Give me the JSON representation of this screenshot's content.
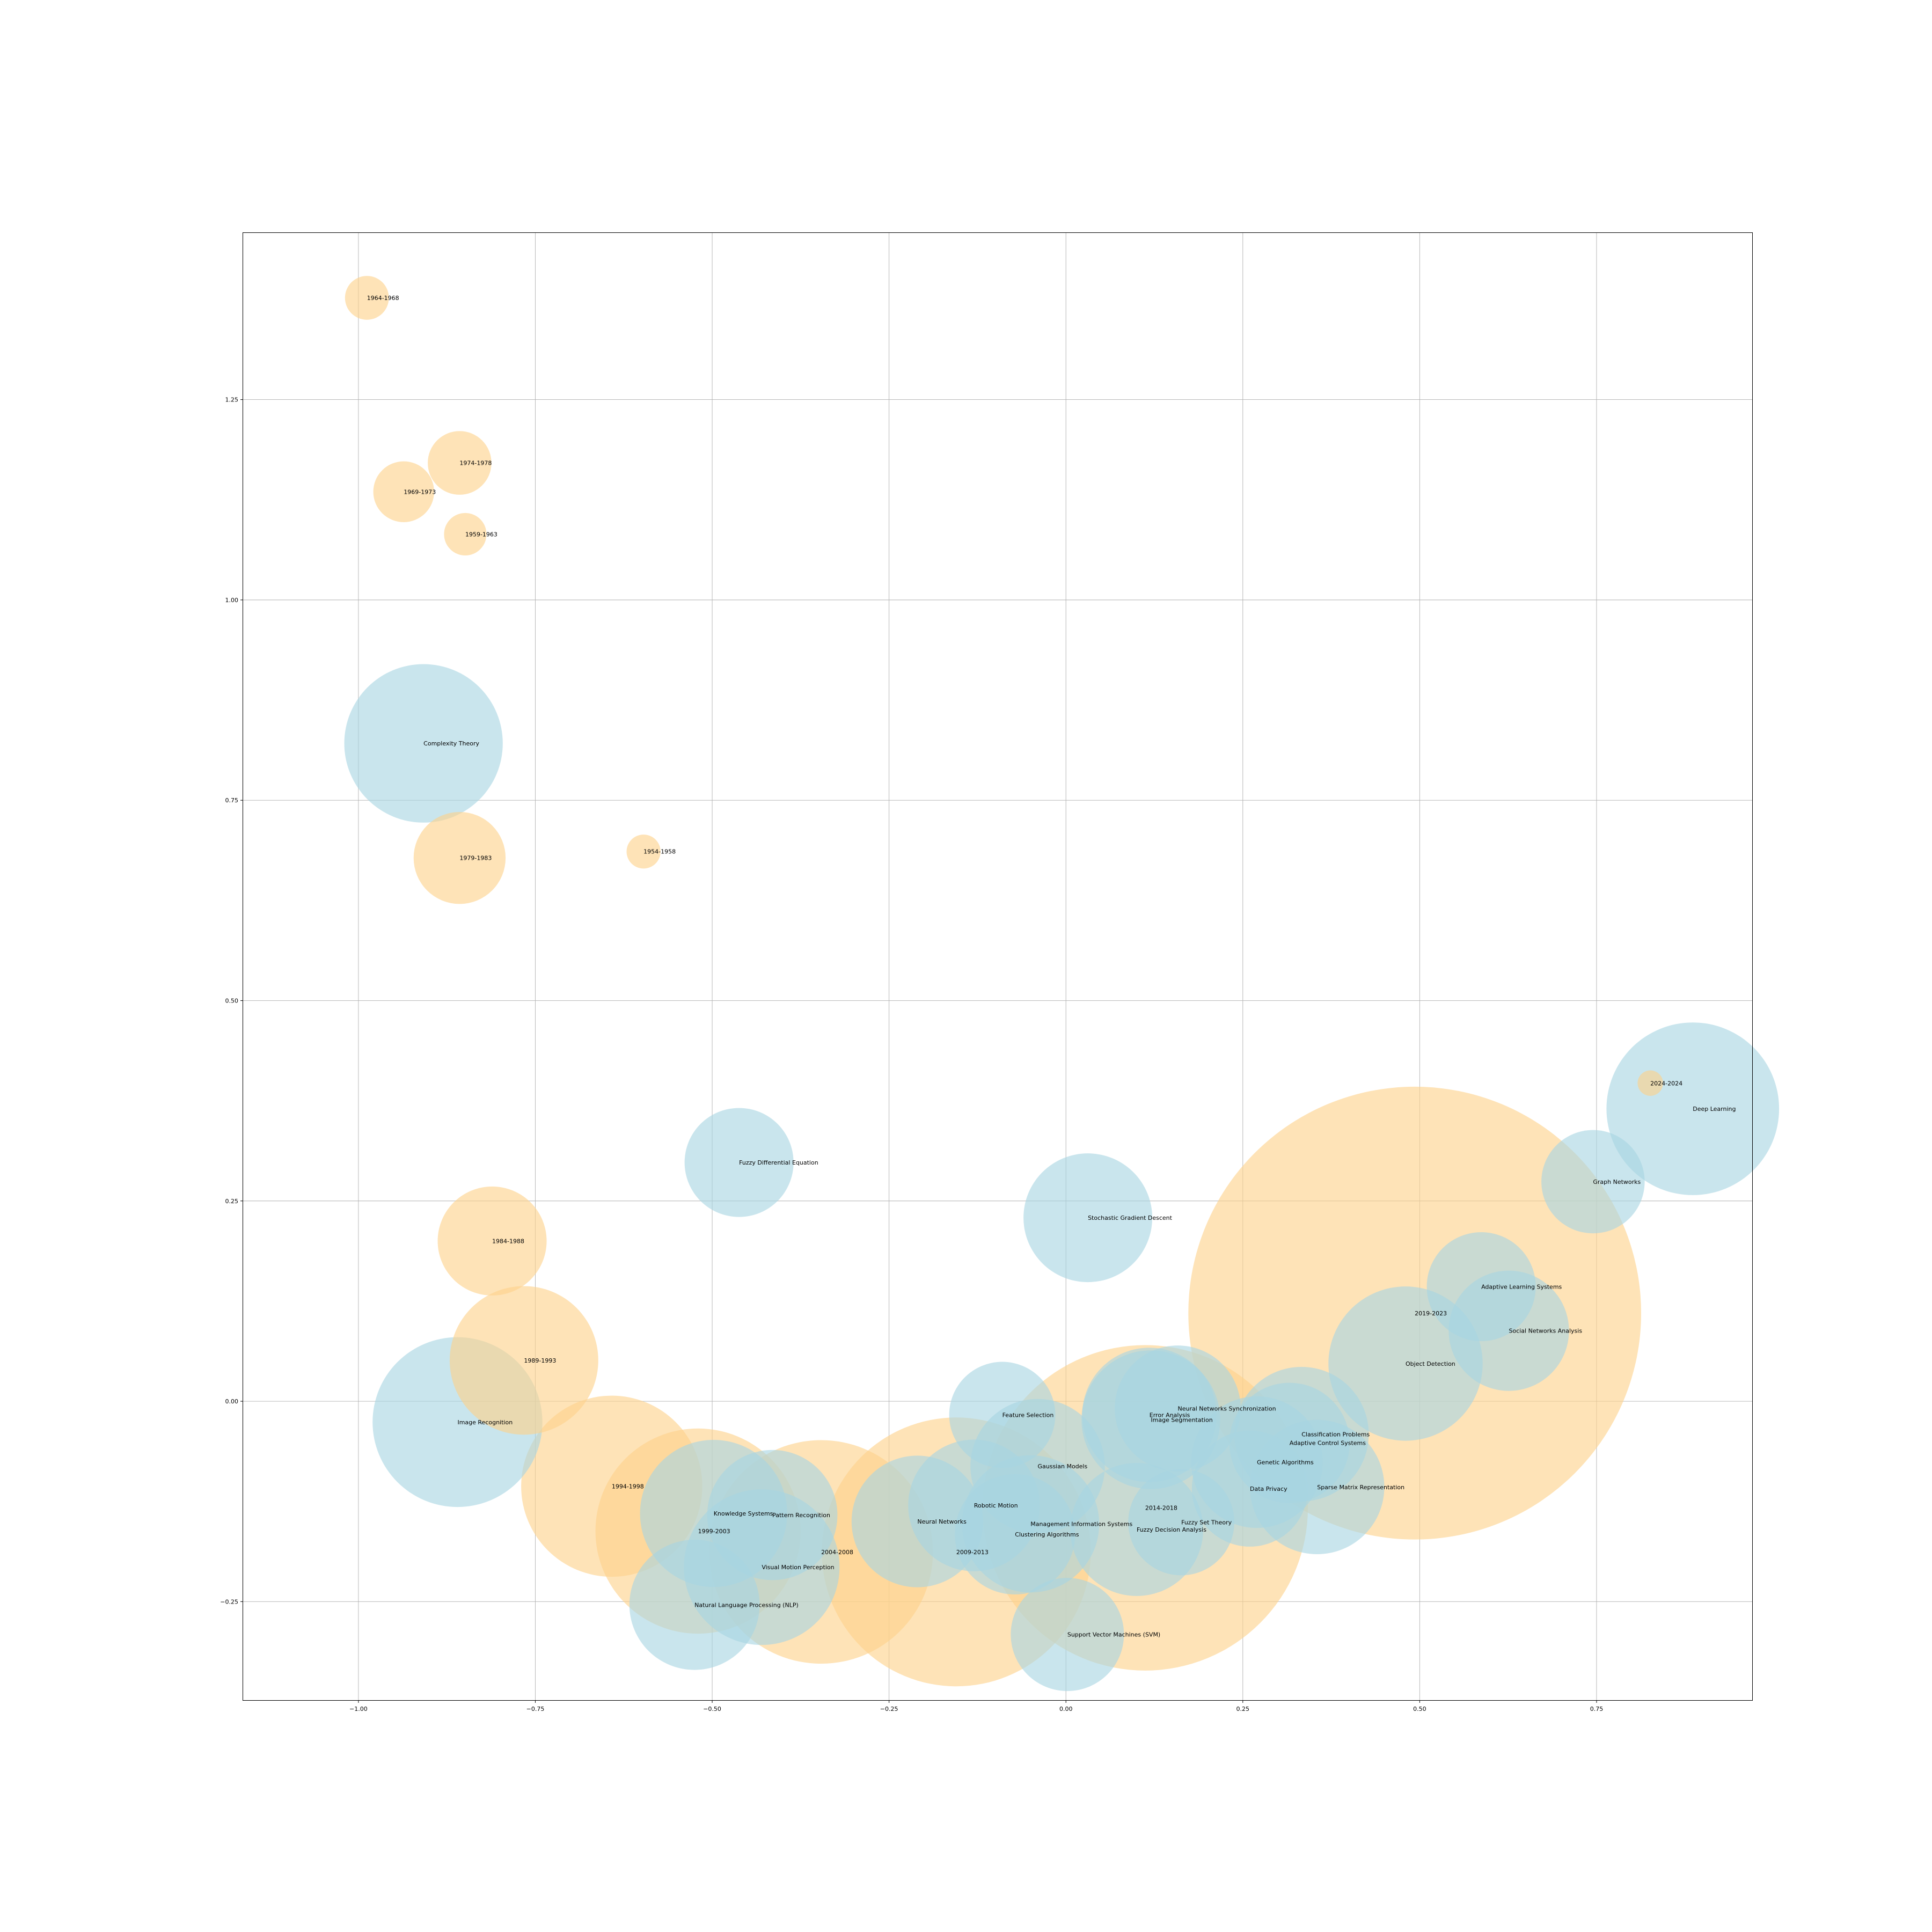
{
  "chart_data": {
    "type": "scatter",
    "subtype": "bubble",
    "title": "",
    "xlabel": "",
    "ylabel": "",
    "xlim": [
      -1.163,
      0.97
    ],
    "ylim": [
      -0.373,
      1.458
    ],
    "grid": true,
    "colors": {
      "period": "#FDD28A",
      "topic": "#A8D5E2"
    },
    "x_ticks": [
      {
        "value": -1.0,
        "label": "−1.00"
      },
      {
        "value": -0.75,
        "label": "−0.75"
      },
      {
        "value": -0.5,
        "label": "−0.50"
      },
      {
        "value": -0.25,
        "label": "−0.25"
      },
      {
        "value": 0.0,
        "label": "0.00"
      },
      {
        "value": 0.25,
        "label": "0.25"
      },
      {
        "value": 0.5,
        "label": "0.50"
      },
      {
        "value": 0.75,
        "label": "0.75"
      }
    ],
    "y_ticks": [
      {
        "value": -0.25,
        "label": "−0.25"
      },
      {
        "value": 0.0,
        "label": "0.00"
      },
      {
        "value": 0.25,
        "label": "0.25"
      },
      {
        "value": 0.5,
        "label": "0.50"
      },
      {
        "value": 0.75,
        "label": "0.75"
      },
      {
        "value": 1.0,
        "label": "1.00"
      },
      {
        "value": 1.25,
        "label": "1.25"
      }
    ],
    "points": [
      {
        "label": "1964-1968",
        "group": "period",
        "x": -0.988,
        "y": 1.377,
        "r": 0.031
      },
      {
        "label": "1974-1978",
        "group": "period",
        "x": -0.857,
        "y": 1.171,
        "r": 0.045
      },
      {
        "label": "1969-1973",
        "group": "period",
        "x": -0.936,
        "y": 1.135,
        "r": 0.043
      },
      {
        "label": "1959-1963",
        "group": "period",
        "x": -0.849,
        "y": 1.082,
        "r": 0.03
      },
      {
        "label": "Complexity Theory",
        "group": "topic",
        "x": -0.908,
        "y": 0.821,
        "r": 0.112
      },
      {
        "label": "1979-1983",
        "group": "period",
        "x": -0.857,
        "y": 0.678,
        "r": 0.065
      },
      {
        "label": "1954-1958",
        "group": "period",
        "x": -0.597,
        "y": 0.686,
        "r": 0.024
      },
      {
        "label": "2024-2024",
        "group": "period",
        "x": 0.826,
        "y": 0.397,
        "r": 0.018
      },
      {
        "label": "Deep Learning",
        "group": "topic",
        "x": 0.886,
        "y": 0.365,
        "r": 0.122
      },
      {
        "label": "Fuzzy Differential Equation",
        "group": "topic",
        "x": -0.462,
        "y": 0.298,
        "r": 0.077
      },
      {
        "label": "Graph Networks",
        "group": "topic",
        "x": 0.745,
        "y": 0.274,
        "r": 0.073
      },
      {
        "label": "Stochastic Gradient Descent",
        "group": "topic",
        "x": 0.031,
        "y": 0.229,
        "r": 0.091
      },
      {
        "label": "1984-1988",
        "group": "period",
        "x": -0.811,
        "y": 0.2,
        "r": 0.077
      },
      {
        "label": "2019-2023",
        "group": "period",
        "x": 0.493,
        "y": 0.11,
        "r": 0.32
      },
      {
        "label": "Adaptive Learning Systems",
        "group": "topic",
        "x": 0.587,
        "y": 0.143,
        "r": 0.077
      },
      {
        "label": "Social Networks Analysis",
        "group": "topic",
        "x": 0.626,
        "y": 0.088,
        "r": 0.085
      },
      {
        "label": "1989-1993",
        "group": "period",
        "x": -0.766,
        "y": 0.051,
        "r": 0.105
      },
      {
        "label": "Object Detection",
        "group": "topic",
        "x": 0.48,
        "y": 0.047,
        "r": 0.109
      },
      {
        "label": "Image Recognition",
        "group": "topic",
        "x": -0.86,
        "y": -0.026,
        "r": 0.12
      },
      {
        "label": "Feature Selection",
        "group": "topic",
        "x": -0.09,
        "y": -0.017,
        "r": 0.075
      },
      {
        "label": "Neural Networks Synchronization",
        "group": "topic",
        "x": 0.158,
        "y": -0.009,
        "r": 0.089
      },
      {
        "label": "Error Analysis",
        "group": "topic",
        "x": 0.118,
        "y": -0.017,
        "r": 0.095
      },
      {
        "label": "Image Segmentation",
        "group": "topic",
        "x": 0.12,
        "y": -0.023,
        "r": 0.098
      },
      {
        "label": "Classification Problems",
        "group": "topic",
        "x": 0.333,
        "y": -0.041,
        "r": 0.095
      },
      {
        "label": "Adaptive Control Systems",
        "group": "topic",
        "x": 0.316,
        "y": -0.052,
        "r": 0.085
      },
      {
        "label": "Gaussian Models",
        "group": "topic",
        "x": -0.04,
        "y": -0.081,
        "r": 0.095
      },
      {
        "label": "Genetic Algorithms",
        "group": "topic",
        "x": 0.27,
        "y": -0.076,
        "r": 0.093
      },
      {
        "label": "1994-1998",
        "group": "period",
        "x": -0.642,
        "y": -0.106,
        "r": 0.128
      },
      {
        "label": "Sparse Matrix Representation",
        "group": "topic",
        "x": 0.355,
        "y": -0.107,
        "r": 0.095
      },
      {
        "label": "Data Privacy",
        "group": "topic",
        "x": 0.26,
        "y": -0.109,
        "r": 0.082
      },
      {
        "label": "Knowledge Systems",
        "group": "topic",
        "x": -0.498,
        "y": -0.14,
        "r": 0.104
      },
      {
        "label": "Pattern Recognition",
        "group": "topic",
        "x": -0.415,
        "y": -0.142,
        "r": 0.092
      },
      {
        "label": "2014-2018",
        "group": "period",
        "x": 0.112,
        "y": -0.133,
        "r": 0.23
      },
      {
        "label": "Robotic Motion",
        "group": "topic",
        "x": -0.13,
        "y": -0.13,
        "r": 0.093
      },
      {
        "label": "Neural Networks",
        "group": "topic",
        "x": -0.21,
        "y": -0.15,
        "r": 0.093
      },
      {
        "label": "Management Information Systems",
        "group": "topic",
        "x": -0.05,
        "y": -0.153,
        "r": 0.097
      },
      {
        "label": "Fuzzy Set Theory",
        "group": "topic",
        "x": 0.163,
        "y": -0.151,
        "r": 0.075
      },
      {
        "label": "1999-2003",
        "group": "period",
        "x": -0.52,
        "y": -0.162,
        "r": 0.145
      },
      {
        "label": "Clustering Algorithms",
        "group": "topic",
        "x": -0.072,
        "y": -0.166,
        "r": 0.085
      },
      {
        "label": "Fuzzy Decision Analysis",
        "group": "topic",
        "x": 0.1,
        "y": -0.16,
        "r": 0.094
      },
      {
        "label": "2004-2008",
        "group": "period",
        "x": -0.346,
        "y": -0.188,
        "r": 0.158
      },
      {
        "label": "2009-2013",
        "group": "period",
        "x": -0.155,
        "y": -0.188,
        "r": 0.19
      },
      {
        "label": "Visual Motion Perception",
        "group": "topic",
        "x": -0.43,
        "y": -0.207,
        "r": 0.11
      },
      {
        "label": "Natural Language Processing (NLP)",
        "group": "topic",
        "x": -0.525,
        "y": -0.254,
        "r": 0.092
      },
      {
        "label": "Support Vector Machines (SVM)",
        "group": "topic",
        "x": 0.002,
        "y": -0.291,
        "r": 0.08
      }
    ]
  }
}
